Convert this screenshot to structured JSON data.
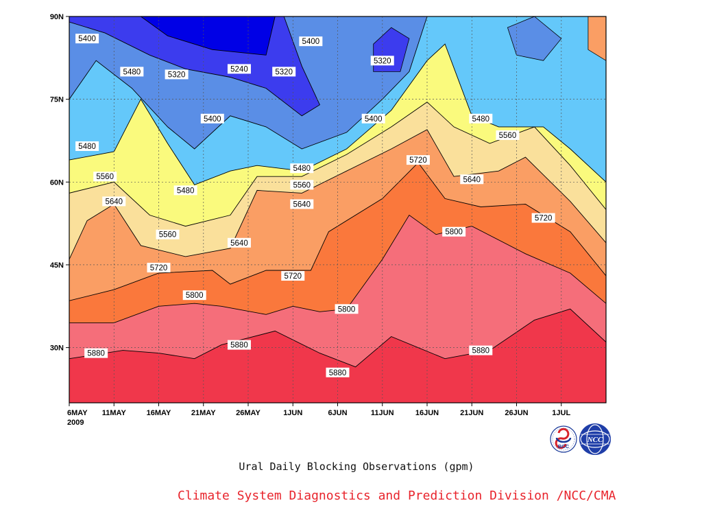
{
  "chart_data": {
    "type": "heatmap",
    "title": "Ural Daily Blocking Observations (gpm)",
    "credit": "Climate System Diagnostics and Prediction Division /NCC/CMA",
    "year_label": "2009",
    "x_ticks": [
      "6MAY",
      "11MAY",
      "16MAY",
      "21MAY",
      "26MAY",
      "1JUN",
      "6JUN",
      "11JUN",
      "16JUN",
      "21JUN",
      "26JUN",
      "1JUL"
    ],
    "y_ticks": [
      "30N",
      "45N",
      "60N",
      "75N",
      "90N"
    ],
    "xlim": [
      "2009-05-06",
      "2009-07-05"
    ],
    "ylim": [
      20,
      90
    ],
    "levels": [
      5240,
      5320,
      5400,
      5480,
      5560,
      5640,
      5720,
      5800,
      5880
    ],
    "colors": [
      "#0000e6",
      "#3c3cee",
      "#5a8ee6",
      "#64c8fa",
      "#fafa7d",
      "#fae09b",
      "#fa9e64",
      "#fa783c",
      "#f56e7a",
      "#f0374b"
    ],
    "contours": [
      {
        "level": 5880,
        "label": "5880",
        "points": [
          [
            "2009-05-06",
            28
          ],
          [
            "2009-05-12",
            29.5
          ],
          [
            "2009-05-16",
            29
          ],
          [
            "2009-05-20",
            28
          ],
          [
            "2009-05-23",
            30.5
          ],
          [
            "2009-05-29",
            33
          ],
          [
            "2009-06-03",
            29
          ],
          [
            "2009-06-07",
            26.5
          ],
          [
            "2009-06-11",
            32
          ],
          [
            "2009-06-17",
            28
          ],
          [
            "2009-06-22",
            29.5
          ],
          [
            "2009-06-27",
            35
          ],
          [
            "2009-07-01",
            37
          ],
          [
            "2009-07-05",
            31
          ]
        ]
      },
      {
        "level": 5800,
        "label": "5800",
        "points": [
          [
            "2009-05-06",
            34.5
          ],
          [
            "2009-05-11",
            34.5
          ],
          [
            "2009-05-16",
            37.5
          ],
          [
            "2009-05-20",
            38
          ],
          [
            "2009-05-23",
            37.5
          ],
          [
            "2009-05-28",
            36
          ],
          [
            "2009-05-31",
            37.5
          ],
          [
            "2009-06-03",
            36.5
          ],
          [
            "2009-06-06",
            37
          ],
          [
            "2009-06-10",
            46
          ],
          [
            "2009-06-13",
            54
          ],
          [
            "2009-06-16",
            50.5
          ],
          [
            "2009-06-20",
            52
          ],
          [
            "2009-06-26",
            47
          ],
          [
            "2009-07-01",
            43.5
          ],
          [
            "2009-07-05",
            38
          ]
        ]
      },
      {
        "level": 5720,
        "label": "5720",
        "points": [
          [
            "2009-05-06",
            38.5
          ],
          [
            "2009-05-11",
            40.5
          ],
          [
            "2009-05-16",
            43.5
          ],
          [
            "2009-05-22",
            44
          ],
          [
            "2009-05-24",
            41.5
          ],
          [
            "2009-05-28",
            44
          ],
          [
            "2009-06-02",
            44
          ],
          [
            "2009-06-04",
            51
          ],
          [
            "2009-06-10",
            57
          ],
          [
            "2009-06-14",
            63.5
          ],
          [
            "2009-06-17",
            57
          ],
          [
            "2009-06-21",
            55.5
          ],
          [
            "2009-06-26",
            56
          ],
          [
            "2009-07-01",
            51
          ],
          [
            "2009-07-05",
            43
          ]
        ]
      },
      {
        "level": 5640,
        "label": "5640",
        "points": [
          [
            "2009-05-06",
            46
          ],
          [
            "2009-05-08",
            53
          ],
          [
            "2009-05-11",
            56
          ],
          [
            "2009-05-14",
            48.5
          ],
          [
            "2009-05-19",
            46.5
          ],
          [
            "2009-05-24",
            48
          ],
          [
            "2009-05-27",
            58.5
          ],
          [
            "2009-06-01",
            58
          ],
          [
            "2009-06-06",
            62
          ],
          [
            "2009-06-11",
            66
          ],
          [
            "2009-06-15",
            69.5
          ],
          [
            "2009-06-18",
            61
          ],
          [
            "2009-06-23",
            62
          ],
          [
            "2009-06-26",
            64.5
          ],
          [
            "2009-07-01",
            56.5
          ],
          [
            "2009-07-05",
            49
          ]
        ]
      },
      {
        "level": 5560,
        "label": "5560",
        "points": [
          [
            "2009-05-06",
            58
          ],
          [
            "2009-05-11",
            60
          ],
          [
            "2009-05-15",
            54
          ],
          [
            "2009-05-19",
            52
          ],
          [
            "2009-05-24",
            54
          ],
          [
            "2009-05-27",
            61
          ],
          [
            "2009-06-01",
            61
          ],
          [
            "2009-06-06",
            65
          ],
          [
            "2009-06-11",
            70
          ],
          [
            "2009-06-15",
            74.5
          ],
          [
            "2009-06-18",
            70
          ],
          [
            "2009-06-22",
            67
          ],
          [
            "2009-06-27",
            70
          ],
          [
            "2009-07-01",
            63
          ],
          [
            "2009-07-05",
            55
          ]
        ]
      },
      {
        "level": 5480,
        "label": "5480",
        "points": [
          [
            "2009-05-06",
            64
          ],
          [
            "2009-05-11",
            65.5
          ],
          [
            "2009-05-14",
            75
          ],
          [
            "2009-05-17",
            67
          ],
          [
            "2009-05-20",
            59.5
          ],
          [
            "2009-05-24",
            62
          ],
          [
            "2009-05-27",
            63
          ],
          [
            "2009-06-01",
            62
          ],
          [
            "2009-06-06",
            66
          ],
          [
            "2009-06-11",
            73
          ],
          [
            "2009-06-15",
            82
          ],
          [
            "2009-06-17",
            85
          ],
          [
            "2009-06-20",
            72
          ],
          [
            "2009-06-23",
            70
          ],
          [
            "2009-06-28",
            70
          ],
          [
            "2009-07-01",
            66
          ],
          [
            "2009-07-05",
            60
          ]
        ]
      },
      {
        "level": 5400,
        "label": "5400",
        "points": [
          [
            "2009-05-06",
            75
          ],
          [
            "2009-05-09",
            82
          ],
          [
            "2009-05-13",
            77
          ],
          [
            "2009-05-17",
            70
          ],
          [
            "2009-05-20",
            66
          ],
          [
            "2009-05-24",
            72
          ],
          [
            "2009-05-28",
            70
          ],
          [
            "2009-06-01",
            66
          ],
          [
            "2009-06-06",
            69
          ],
          [
            "2009-06-10",
            75
          ],
          [
            "2009-06-13",
            80
          ],
          [
            "2009-06-15",
            90
          ]
        ]
      },
      {
        "level": 5320,
        "label": "5320",
        "points": [
          [
            "2009-05-06",
            89
          ],
          [
            "2009-05-10",
            87
          ],
          [
            "2009-05-15",
            83
          ],
          [
            "2009-05-19",
            80.5
          ],
          [
            "2009-05-24",
            79
          ],
          [
            "2009-05-28",
            77
          ],
          [
            "2009-06-01",
            72
          ],
          [
            "2009-06-03",
            74
          ],
          [
            "2009-06-01",
            81
          ],
          [
            "2009-05-30",
            90
          ]
        ]
      },
      {
        "level": 5240,
        "label": "5240",
        "points": [
          [
            "2009-05-14",
            90
          ],
          [
            "2009-05-17",
            86.5
          ],
          [
            "2009-05-22",
            84
          ],
          [
            "2009-05-28",
            83
          ],
          [
            "2009-05-29",
            90
          ]
        ]
      }
    ],
    "contour_labels": [
      {
        "text": "5400",
        "x": "2009-05-08",
        "y": 86
      },
      {
        "text": "5480",
        "x": "2009-05-13",
        "y": 80
      },
      {
        "text": "5320",
        "x": "2009-05-18",
        "y": 79.5
      },
      {
        "text": "5240",
        "x": "2009-05-25",
        "y": 80.5
      },
      {
        "text": "5320",
        "x": "2009-05-30",
        "y": 80
      },
      {
        "text": "5400",
        "x": "2009-06-02",
        "y": 85.5
      },
      {
        "text": "5320",
        "x": "2009-06-10",
        "y": 82
      },
      {
        "text": "5400",
        "x": "2009-05-22",
        "y": 71.5
      },
      {
        "text": "5400",
        "x": "2009-06-09",
        "y": 71.5
      },
      {
        "text": "5480",
        "x": "2009-05-08",
        "y": 66.5
      },
      {
        "text": "5480",
        "x": "2009-06-01",
        "y": 62.5
      },
      {
        "text": "5480",
        "x": "2009-06-21",
        "y": 71.5
      },
      {
        "text": "5560",
        "x": "2009-06-24",
        "y": 68.5
      },
      {
        "text": "5560",
        "x": "2009-05-10",
        "y": 61
      },
      {
        "text": "5560",
        "x": "2009-06-01",
        "y": 59.5
      },
      {
        "text": "5480",
        "x": "2009-05-19",
        "y": 58.5
      },
      {
        "text": "5640",
        "x": "2009-05-11",
        "y": 56.5
      },
      {
        "text": "5640",
        "x": "2009-06-01",
        "y": 56
      },
      {
        "text": "5720",
        "x": "2009-06-14",
        "y": 64
      },
      {
        "text": "5640",
        "x": "2009-06-20",
        "y": 60.5
      },
      {
        "text": "5720",
        "x": "2009-06-28",
        "y": 53.5
      },
      {
        "text": "5560",
        "x": "2009-05-17",
        "y": 50.5
      },
      {
        "text": "5640",
        "x": "2009-05-25",
        "y": 49
      },
      {
        "text": "5800",
        "x": "2009-06-18",
        "y": 51
      },
      {
        "text": "5720",
        "x": "2009-05-16",
        "y": 44.5
      },
      {
        "text": "5720",
        "x": "2009-05-31",
        "y": 43
      },
      {
        "text": "5800",
        "x": "2009-05-20",
        "y": 39.5
      },
      {
        "text": "5800",
        "x": "2009-06-06",
        "y": 37
      },
      {
        "text": "5880",
        "x": "2009-05-09",
        "y": 29
      },
      {
        "text": "5880",
        "x": "2009-05-25",
        "y": 30.5
      },
      {
        "text": "5880",
        "x": "2009-06-05",
        "y": 25.5
      },
      {
        "text": "5880",
        "x": "2009-06-21",
        "y": 29.5
      }
    ],
    "grid": true,
    "grid_style": "dotted"
  },
  "logos": {
    "left_text": "BCC",
    "right_text": "NCC"
  }
}
